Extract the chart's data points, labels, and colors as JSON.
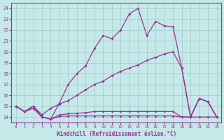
{
  "background_color": "#c5e8e8",
  "grid_color": "#a0c8c8",
  "line_color": "#993399",
  "x_label": "Windchill (Refroidissement éolien,°C)",
  "ylim": [
    13.5,
    24.5
  ],
  "xlim": [
    -0.5,
    23.5
  ],
  "yticks": [
    14,
    15,
    16,
    17,
    18,
    19,
    20,
    21,
    22,
    23,
    24
  ],
  "xticks": [
    0,
    1,
    2,
    3,
    4,
    5,
    6,
    7,
    8,
    9,
    10,
    11,
    12,
    13,
    14,
    15,
    16,
    17,
    18,
    19,
    20,
    21,
    22,
    23
  ],
  "series": [
    {
      "x": [
        0,
        1,
        2,
        3,
        4,
        5,
        6,
        7,
        8,
        9,
        10,
        11,
        12,
        13,
        14,
        15,
        16,
        17,
        18,
        19,
        20,
        21,
        22,
        23
      ],
      "y": [
        15.0,
        14.5,
        15.0,
        14.0,
        13.8,
        15.3,
        17.0,
        18.0,
        18.7,
        20.3,
        21.5,
        21.2,
        22.0,
        23.5,
        24.0,
        21.5,
        22.8,
        22.4,
        22.3,
        18.5,
        14.0,
        15.7,
        15.4,
        14.0
      ]
    },
    {
      "x": [
        0,
        1,
        2,
        3,
        4,
        5,
        6,
        7,
        8,
        9,
        10,
        11,
        12,
        13,
        14,
        15,
        16,
        17,
        18,
        19,
        20,
        21,
        22,
        23
      ],
      "y": [
        15.0,
        14.5,
        15.0,
        14.2,
        14.8,
        15.2,
        15.5,
        16.0,
        16.5,
        17.0,
        17.3,
        17.8,
        18.2,
        18.5,
        18.8,
        19.2,
        19.5,
        19.8,
        20.0,
        18.5,
        14.0,
        15.7,
        15.4,
        14.0
      ]
    },
    {
      "x": [
        0,
        1,
        2,
        3,
        4,
        5,
        6,
        7,
        8,
        9,
        10,
        11,
        12,
        13,
        14,
        15,
        16,
        17,
        18,
        19,
        20,
        21,
        22,
        23
      ],
      "y": [
        15.0,
        14.5,
        14.8,
        14.0,
        13.8,
        14.2,
        14.3,
        14.35,
        14.4,
        14.5,
        14.5,
        14.5,
        14.5,
        14.5,
        14.5,
        14.5,
        14.5,
        14.5,
        14.5,
        14.0,
        14.0,
        15.7,
        15.4,
        14.0
      ]
    },
    {
      "x": [
        0,
        1,
        2,
        3,
        4,
        5,
        6,
        7,
        8,
        9,
        10,
        11,
        12,
        13,
        14,
        15,
        16,
        17,
        18,
        19,
        20,
        21,
        22,
        23
      ],
      "y": [
        15.0,
        14.5,
        14.8,
        14.0,
        13.8,
        14.05,
        14.1,
        14.1,
        14.1,
        14.1,
        14.1,
        14.1,
        14.1,
        14.1,
        14.1,
        14.1,
        14.1,
        14.1,
        14.1,
        14.0,
        14.0,
        14.0,
        14.0,
        14.0
      ]
    }
  ],
  "figsize": [
    3.2,
    2.0
  ],
  "dpi": 100
}
